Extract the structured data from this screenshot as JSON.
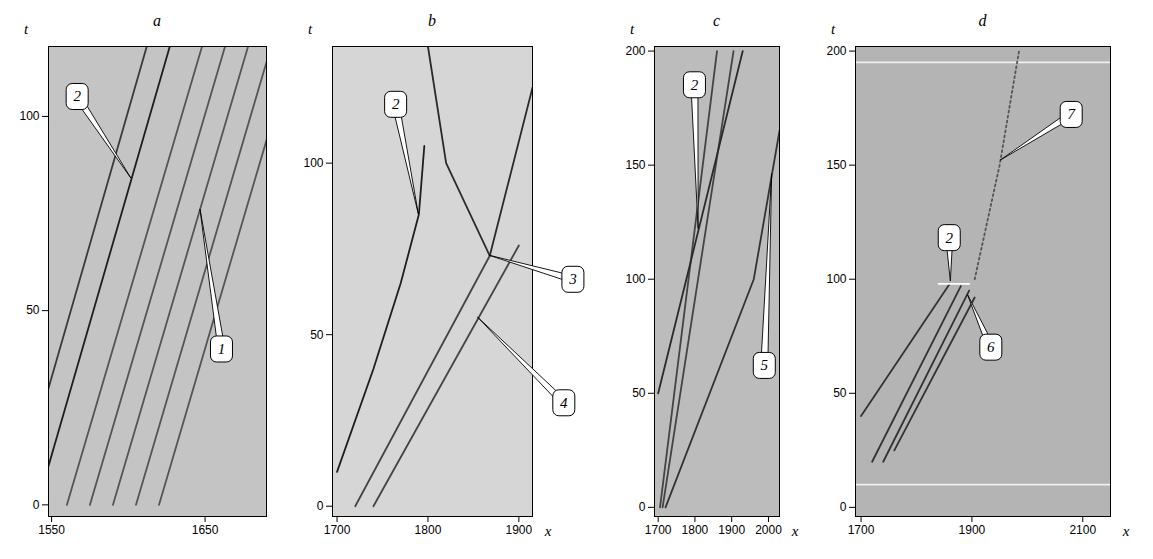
{
  "chart_data": [
    {
      "type": "line",
      "title": "a",
      "y_label": "t",
      "xlim": [
        1548,
        1690
      ],
      "xticks": [
        1550,
        1650
      ],
      "ylim": [
        -3,
        118
      ],
      "yticks": [
        0,
        50,
        100
      ],
      "grid": false,
      "series": [
        {
          "color": "#555555",
          "x": [
            1560,
            1648
          ],
          "y": [
            0,
            118
          ]
        },
        {
          "color": "#555555",
          "x": [
            1575,
            1663
          ],
          "y": [
            0,
            118
          ]
        },
        {
          "color": "#555555",
          "x": [
            1590,
            1678
          ],
          "y": [
            0,
            118
          ]
        },
        {
          "color": "#555555",
          "x": [
            1605,
            1693
          ],
          "y": [
            0,
            118
          ]
        },
        {
          "color": "#555555",
          "x": [
            1620,
            1708
          ],
          "y": [
            0,
            118
          ]
        },
        {
          "color": "#1e1e1e",
          "x": [
            1548,
            1627
          ],
          "y": [
            10,
            118
          ]
        },
        {
          "color": "#3a3a3a",
          "x": [
            1548,
            1612
          ],
          "y": [
            30,
            118
          ]
        }
      ],
      "annotations": [
        {
          "text": "2",
          "x": 1567,
          "y": 105,
          "target_x": 1602,
          "target_y": 84
        },
        {
          "text": "1",
          "x": 1661,
          "y": 40,
          "target_x": 1647,
          "target_y": 76
        }
      ]
    },
    {
      "type": "line",
      "title": "b",
      "x_label": "x",
      "y_label": "t",
      "xlim": [
        1695,
        1915
      ],
      "xticks": [
        1700,
        1800,
        1900
      ],
      "ylim": [
        -3,
        134
      ],
      "yticks": [
        0,
        50,
        100
      ],
      "grid": false,
      "series": [
        {
          "color": "#1e1e1e",
          "x": [
            1700,
            1740,
            1770,
            1790,
            1796
          ],
          "y": [
            10,
            40,
            65,
            85,
            105
          ]
        },
        {
          "color": "#2a2a2a",
          "x": [
            1868,
            1820,
            1800
          ],
          "y": [
            73,
            100,
            134
          ]
        },
        {
          "color": "#2a2a2a",
          "x": [
            1868,
            1915
          ],
          "y": [
            73,
            122
          ]
        },
        {
          "color": "#444444",
          "x": [
            1740,
            1900
          ],
          "y": [
            0,
            76
          ]
        },
        {
          "color": "#444444",
          "x": [
            1720,
            1868
          ],
          "y": [
            0,
            73
          ]
        }
      ],
      "annotations": [
        {
          "text": "2",
          "x": 1765,
          "y": 117,
          "target_x": 1790,
          "target_y": 85
        },
        {
          "text": "3",
          "x": 1960,
          "y": 66,
          "target_x": 1868,
          "target_y": 73
        },
        {
          "text": "4",
          "x": 1950,
          "y": 30,
          "target_x": 1855,
          "target_y": 55
        }
      ]
    },
    {
      "type": "line",
      "title": "c",
      "x_label": "x",
      "y_label": "t",
      "xlim": [
        1690,
        2030
      ],
      "xticks": [
        1700,
        1800,
        1900,
        2000
      ],
      "ylim": [
        -4,
        202
      ],
      "yticks": [
        0,
        50,
        100,
        150,
        200
      ],
      "grid": false,
      "series": [
        {
          "color": "#444444",
          "x": [
            1705,
            1860
          ],
          "y": [
            0,
            200
          ]
        },
        {
          "color": "#444444",
          "x": [
            1712,
            1905
          ],
          "y": [
            0,
            200
          ]
        },
        {
          "color": "#2a2a2a",
          "x": [
            1700,
            1930
          ],
          "y": [
            50,
            200
          ]
        },
        {
          "color": "#333333",
          "x": [
            1720,
            1960,
            2030
          ],
          "y": [
            0,
            100,
            165
          ]
        }
      ],
      "annotations": [
        {
          "text": "2",
          "x": 1800,
          "y": 185,
          "target_x": 1810,
          "target_y": 122
        },
        {
          "text": "5",
          "x": 1990,
          "y": 62,
          "target_x": 2010,
          "target_y": 146
        }
      ]
    },
    {
      "type": "line",
      "title": "d",
      "x_label": "x",
      "y_label": "t",
      "xlim": [
        1690,
        2150
      ],
      "xticks": [
        1700,
        1900,
        2100
      ],
      "ylim": [
        -4,
        202
      ],
      "yticks": [
        0,
        50,
        100,
        150,
        200
      ],
      "grid": false,
      "series": [
        {
          "color": "#333333",
          "x": [
            1720,
            1880
          ],
          "y": [
            20,
            97
          ]
        },
        {
          "color": "#333333",
          "x": [
            1740,
            1895
          ],
          "y": [
            20,
            95
          ]
        },
        {
          "color": "#333333",
          "x": [
            1700,
            1860
          ],
          "y": [
            40,
            98
          ]
        },
        {
          "color": "#333333",
          "x": [
            1760,
            1905
          ],
          "y": [
            25,
            92
          ]
        },
        {
          "color": "#ffffff",
          "x": [
            1840,
            1895
          ],
          "y": [
            98,
            98
          ]
        },
        {
          "color": "#f0f0f0",
          "x": [
            1690,
            2150
          ],
          "y": [
            10,
            10
          ]
        },
        {
          "color": "#f0f0f0",
          "x": [
            1690,
            2150
          ],
          "y": [
            195,
            195
          ]
        },
        {
          "color": "#555555",
          "line_style": "dotted",
          "x": [
            1905,
            1950,
            1985
          ],
          "y": [
            100,
            150,
            200
          ]
        }
      ],
      "annotations": [
        {
          "text": "2",
          "x": 1860,
          "y": 118,
          "target_x": 1862,
          "target_y": 99
        },
        {
          "text": "6",
          "x": 1935,
          "y": 70,
          "target_x": 1893,
          "target_y": 93
        },
        {
          "text": "7",
          "x": 2080,
          "y": 172,
          "target_x": 1952,
          "target_y": 152
        }
      ]
    }
  ]
}
